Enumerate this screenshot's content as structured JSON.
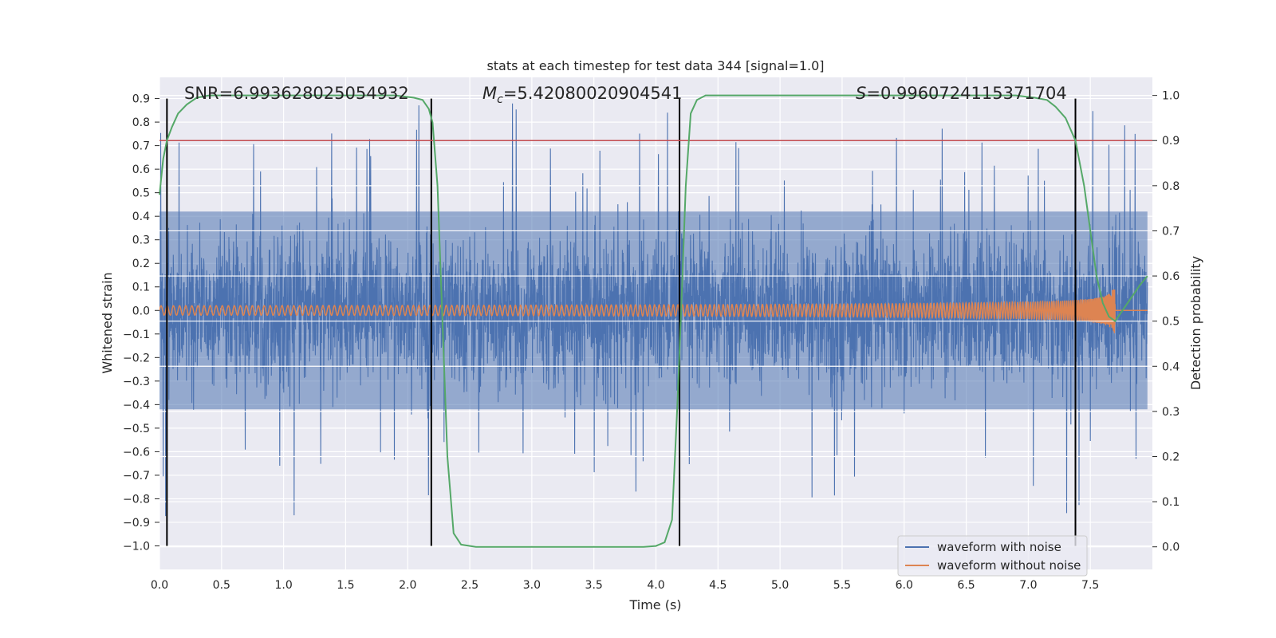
{
  "chart_data": {
    "type": "line",
    "title": "stats at each timestep for test data 344 [signal=1.0]",
    "xlabel": "Time (s)",
    "ylabel": "Whitened strain",
    "ylabel_right": "Detection probability",
    "xlim": [
      0.0,
      8.0
    ],
    "ylim": [
      -1.1,
      0.99
    ],
    "ylim_right": [
      -0.05,
      1.04
    ],
    "x_ticks": [
      0.0,
      0.5,
      1.0,
      1.5,
      2.0,
      2.5,
      3.0,
      3.5,
      4.0,
      4.5,
      5.0,
      5.5,
      6.0,
      6.5,
      7.0,
      7.5
    ],
    "x_tick_labels": [
      "0.0",
      "0.5",
      "1.0",
      "1.5",
      "2.0",
      "2.5",
      "3.0",
      "3.5",
      "4.0",
      "4.5",
      "5.0",
      "5.5",
      "6.0",
      "6.5",
      "7.0",
      "7.5"
    ],
    "y_ticks": [
      0.9,
      0.8,
      0.7,
      0.6,
      0.5,
      0.4,
      0.3,
      0.2,
      0.1,
      0.0,
      -0.1,
      -0.2,
      -0.3,
      -0.4,
      -0.5,
      -0.6,
      -0.7,
      -0.8,
      -0.9,
      -1.0
    ],
    "y_tick_labels": [
      "0.9",
      "0.8",
      "0.7",
      "0.6",
      "0.5",
      "0.4",
      "0.3",
      "0.2",
      "0.1",
      "0.0",
      "−0.1",
      "−0.2",
      "−0.3",
      "−0.4",
      "−0.5",
      "−0.6",
      "−0.7",
      "−0.8",
      "−0.9",
      "−1.0"
    ],
    "y_right_ticks": [
      1.0,
      0.9,
      0.8,
      0.7,
      0.6,
      0.5,
      0.4,
      0.3,
      0.2,
      0.1,
      0.0
    ],
    "y_right_tick_labels": [
      "1.0",
      "0.9",
      "0.8",
      "0.7",
      "0.6",
      "0.5",
      "0.4",
      "0.3",
      "0.2",
      "0.1",
      "0.0"
    ],
    "annotations": {
      "snr": "SNR=6.993628025054932",
      "mc_symbol": "M",
      "mc_sub": "c",
      "mc_value": "=5.42080020904541",
      "s_symbol": "S",
      "s_value": "=0.9960724115371704"
    },
    "threshold": 0.9,
    "vertical_lines_x": [
      0.06,
      2.19,
      4.19,
      7.38
    ],
    "probability_series": {
      "name": "Detection probability",
      "x": [
        0.0,
        0.03,
        0.06,
        0.1,
        0.15,
        0.22,
        0.3,
        0.4,
        0.6,
        1.0,
        1.5,
        1.9,
        2.05,
        2.12,
        2.17,
        2.2,
        2.24,
        2.28,
        2.32,
        2.37,
        2.43,
        2.55,
        3.0,
        3.5,
        3.9,
        4.0,
        4.07,
        4.13,
        4.17,
        4.2,
        4.24,
        4.28,
        4.33,
        4.4,
        4.6,
        5.0,
        6.0,
        6.9,
        7.05,
        7.15,
        7.22,
        7.3,
        7.38,
        7.45,
        7.5,
        7.55,
        7.6,
        7.65,
        7.7,
        7.75,
        7.8,
        7.85,
        7.9,
        7.96
      ],
      "y": [
        0.78,
        0.86,
        0.9,
        0.93,
        0.96,
        0.98,
        0.995,
        1.0,
        1.0,
        1.0,
        1.0,
        1.0,
        0.995,
        0.99,
        0.97,
        0.94,
        0.8,
        0.5,
        0.2,
        0.03,
        0.005,
        0.0,
        0.0,
        0.0,
        0.0,
        0.002,
        0.01,
        0.06,
        0.3,
        0.5,
        0.8,
        0.96,
        0.99,
        1.0,
        1.0,
        1.0,
        1.0,
        1.0,
        0.995,
        0.99,
        0.975,
        0.95,
        0.9,
        0.8,
        0.7,
        0.6,
        0.54,
        0.51,
        0.5,
        0.52,
        0.54,
        0.56,
        0.58,
        0.6
      ]
    },
    "series": [
      {
        "name": "waveform with noise",
        "color": "#4c72b0",
        "amplitude_typical": 0.4,
        "peak_max": 0.9,
        "peak_min": -1.0
      },
      {
        "name": "waveform without noise",
        "color": "#dd8452",
        "amplitude_start": 0.02,
        "peak_at_merger": 0.16,
        "merger_time": 7.7
      }
    ],
    "legend": {
      "placement": "lower-right",
      "entries": [
        "waveform with noise",
        "waveform without noise"
      ]
    }
  },
  "colors": {
    "plot_background": "#eaeaf2",
    "grid": "#ffffff",
    "noise": "#4c72b0",
    "clean": "#dd8452",
    "probability": "#55a868",
    "threshold": "#c44e52",
    "vlines": "#000000"
  }
}
